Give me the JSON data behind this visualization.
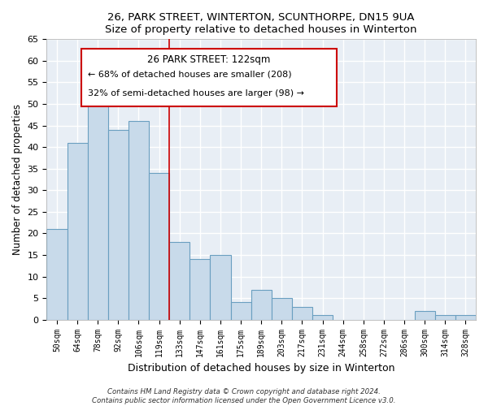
{
  "title1": "26, PARK STREET, WINTERTON, SCUNTHORPE, DN15 9UA",
  "title2": "Size of property relative to detached houses in Winterton",
  "xlabel": "Distribution of detached houses by size in Winterton",
  "ylabel": "Number of detached properties",
  "bar_labels": [
    "50sqm",
    "64sqm",
    "78sqm",
    "92sqm",
    "106sqm",
    "119sqm",
    "133sqm",
    "147sqm",
    "161sqm",
    "175sqm",
    "189sqm",
    "203sqm",
    "217sqm",
    "231sqm",
    "244sqm",
    "258sqm",
    "272sqm",
    "286sqm",
    "300sqm",
    "314sqm",
    "328sqm"
  ],
  "bar_values": [
    21,
    41,
    51,
    44,
    46,
    34,
    18,
    14,
    15,
    4,
    7,
    5,
    3,
    1,
    0,
    0,
    0,
    0,
    2,
    1,
    1
  ],
  "bar_color": "#c8daea",
  "bar_edge_color": "#6a9fc0",
  "vline_x": 5.5,
  "property_label": "26 PARK STREET: 122sqm",
  "smaller_pct": "68%",
  "smaller_count": "208",
  "larger_pct": "32%",
  "larger_count": "98",
  "vline_color": "#cc0000",
  "annotation_box_color": "#ffffff",
  "annotation_box_edge": "#cc0000",
  "ylim": [
    0,
    65
  ],
  "yticks": [
    0,
    5,
    10,
    15,
    20,
    25,
    30,
    35,
    40,
    45,
    50,
    55,
    60,
    65
  ],
  "bg_color": "#e8eef5",
  "grid_color": "#ffffff",
  "footer1": "Contains HM Land Registry data © Crown copyright and database right 2024.",
  "footer2": "Contains public sector information licensed under the Open Government Licence v3.0."
}
